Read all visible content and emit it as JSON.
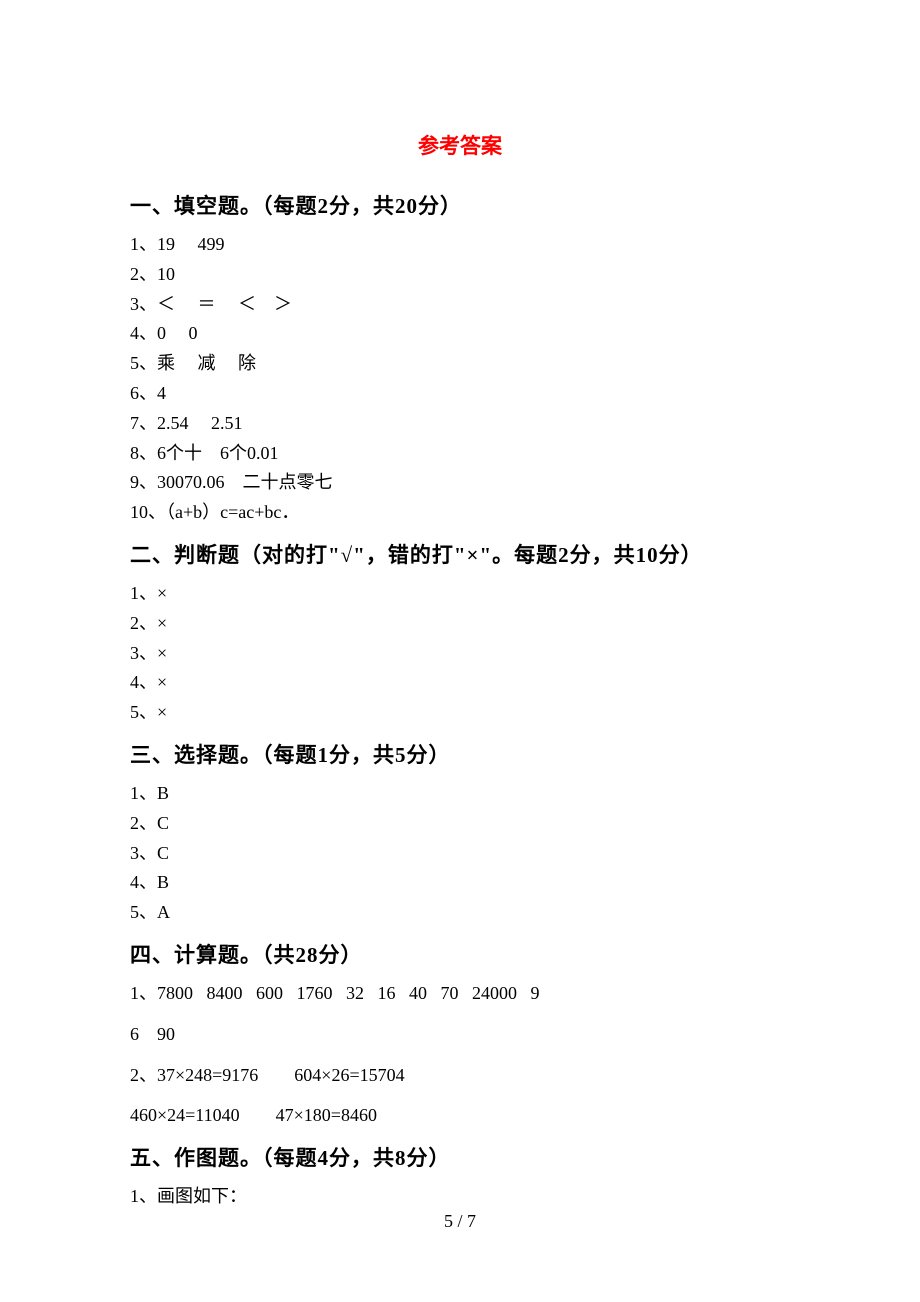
{
  "title": "参考答案",
  "sections": {
    "s1": {
      "heading": "一、填空题。（每题2分，共20分）",
      "lines": [
        "1、19     499",
        "2、10",
        "3、＜     ＝     ＜    ＞",
        "4、0     0",
        "5、乘     减     除",
        "6、4",
        "7、2.54     2.51",
        "8、6个十    6个0.01",
        "9、30070.06    二十点零七",
        "10、（a+b）c=ac+bc．"
      ]
    },
    "s2": {
      "heading": "二、判断题（对的打\"√\"，错的打\"×\"。每题2分，共10分）",
      "lines": [
        "1、×",
        "2、×",
        "3、×",
        "4、×",
        "5、×"
      ]
    },
    "s3": {
      "heading": "三、选择题。（每题1分，共5分）",
      "lines": [
        "1、B",
        "2、C",
        "3、C",
        "4、B",
        "5、A"
      ]
    },
    "s4": {
      "heading": "四、计算题。（共28分）",
      "lines": [
        "1、7800   8400   600   1760   32   16   40   70   24000   9",
        "6    90",
        "2、37×248=9176        604×26=15704",
        "460×24=11040        47×180=8460"
      ]
    },
    "s5": {
      "heading": "五、作图题。（每题4分，共8分）",
      "lines": [
        "1、画图如下："
      ]
    }
  },
  "pageNumber": "5 / 7"
}
